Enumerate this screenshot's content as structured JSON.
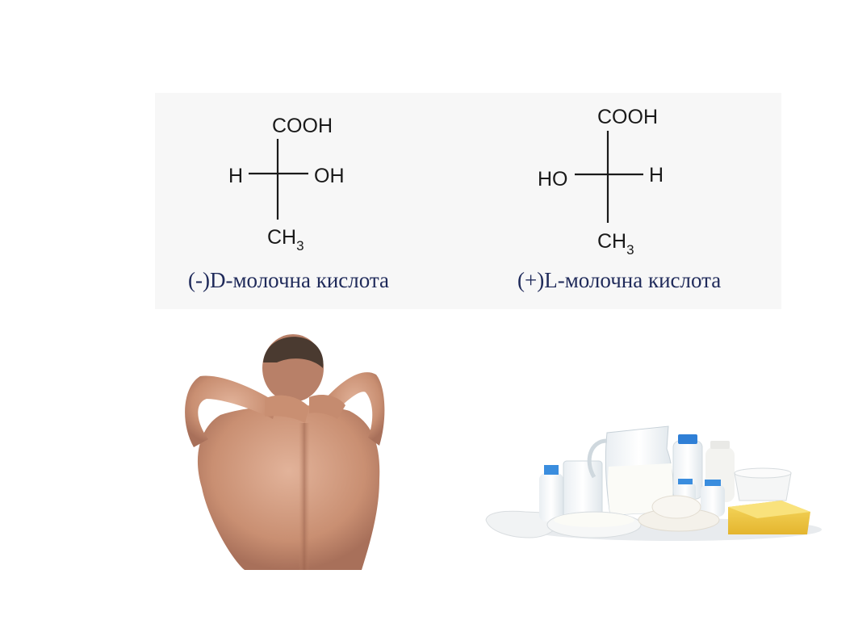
{
  "formulas": [
    {
      "top_group": "COOH",
      "left_group": "H",
      "right_group": "OH",
      "bottom_group": "CH",
      "bottom_subscript": "3",
      "caption": "(-)D-молочна кислота"
    },
    {
      "top_group": "COOH",
      "left_group": "HO",
      "right_group": "H",
      "bottom_group": "CH",
      "bottom_subscript": "3",
      "caption": "(+)L-молочна кислота"
    }
  ],
  "colors": {
    "caption_text": "#1f2a5a",
    "formula_text": "#1a1a1a",
    "panel_bg": "#f7f7f7"
  }
}
